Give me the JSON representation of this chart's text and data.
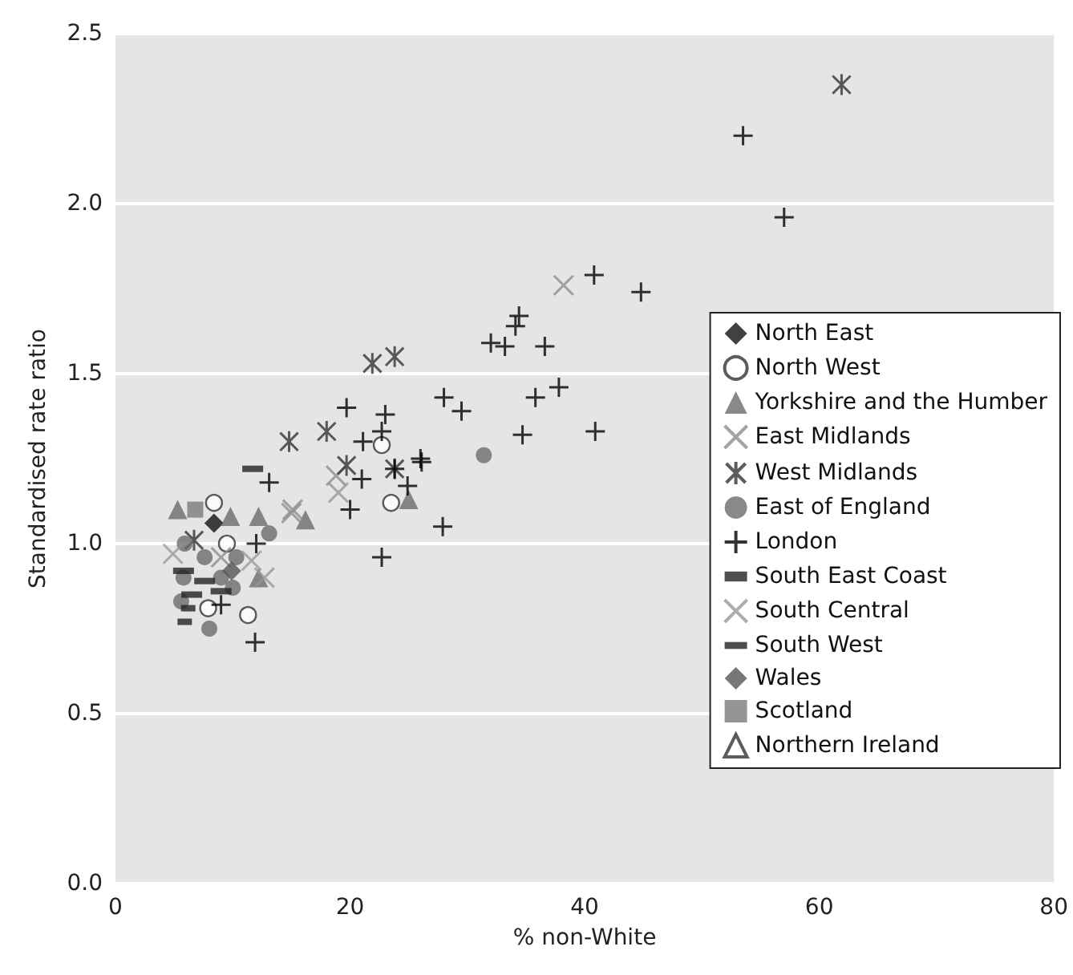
{
  "chart_data": {
    "type": "scatter",
    "xlabel": "% non-White",
    "ylabel": "Standardised rate ratio",
    "xlim": [
      0,
      80
    ],
    "xticks": [
      0,
      20,
      40,
      60,
      80
    ],
    "ylim": [
      0,
      2.5
    ],
    "yticks": [
      {
        "value": 0,
        "label": "0.0"
      },
      {
        "value": 0.5,
        "label": "0.5"
      },
      {
        "value": 1,
        "label": "1.0"
      },
      {
        "value": 1.5,
        "label": "1.5"
      },
      {
        "value": 2,
        "label": "2.0"
      },
      {
        "value": 2.5,
        "label": "2.5"
      }
    ],
    "grid": "y",
    "legend": "right",
    "series": [
      {
        "name": "North East",
        "color": "#111111",
        "marker": "diamond",
        "x": [
          8.4
        ],
        "values": [
          1.06
        ]
      },
      {
        "name": "North West",
        "color": "#ffffff",
        "marker": "circle",
        "x": [
          22.7,
          23.5,
          8.4,
          9.5,
          7.9,
          11.3
        ],
        "values": [
          1.29,
          1.12,
          1.12,
          1.0,
          0.81,
          0.79
        ]
      },
      {
        "name": "Yorkshire and the Humber",
        "color": "#6b6b6b",
        "marker": "triangle",
        "x": [
          25.0,
          16.2,
          5.3,
          9.8,
          12.2,
          12.2
        ],
        "values": [
          1.13,
          1.07,
          1.1,
          1.08,
          1.08,
          0.9
        ]
      },
      {
        "name": "East Midlands",
        "color": "#8c8c8c",
        "marker": "x",
        "x": [
          38.2,
          18.8,
          15.1,
          15.0,
          9.0
        ],
        "values": [
          1.76,
          1.2,
          1.1,
          1.09,
          0.96
        ]
      },
      {
        "name": "West Midlands",
        "color": "#333333",
        "marker": "cross",
        "x": [
          61.9,
          21.9,
          23.8,
          18.0,
          14.8,
          19.7,
          23.8,
          6.7
        ],
        "values": [
          2.35,
          1.53,
          1.55,
          1.33,
          1.3,
          1.23,
          1.22,
          1.01
        ]
      },
      {
        "name": "East of England",
        "color": "#6b6b6b",
        "marker": "circle",
        "x": [
          31.4,
          13.1,
          5.9,
          7.6,
          10.3,
          9.0,
          5.8,
          5.6,
          10.0,
          8.0
        ],
        "values": [
          1.26,
          1.03,
          1.0,
          0.96,
          0.96,
          0.9,
          0.9,
          0.83,
          0.87,
          0.75
        ]
      },
      {
        "name": "London",
        "color": "#000000",
        "marker": "cross",
        "x": [
          53.5,
          57.0,
          40.8,
          44.8,
          34.4,
          34.1,
          32.0,
          33.2,
          36.6,
          28.0,
          29.5,
          35.8,
          37.8,
          34.7,
          40.9,
          19.7,
          23.0,
          22.7,
          21.1,
          13.1,
          21.0,
          23.8,
          26.0,
          26.1,
          24.9,
          20.0,
          27.9,
          22.7,
          12.0,
          9.0,
          11.9
        ],
        "values": [
          2.2,
          1.96,
          1.79,
          1.74,
          1.67,
          1.64,
          1.59,
          1.58,
          1.58,
          1.43,
          1.39,
          1.43,
          1.46,
          1.32,
          1.33,
          1.4,
          1.38,
          1.33,
          1.3,
          1.18,
          1.19,
          1.22,
          1.25,
          1.24,
          1.17,
          1.1,
          1.05,
          0.96,
          1.0,
          0.82,
          0.71
        ]
      },
      {
        "name": "South East Coast",
        "color": "#222222",
        "marker": "square",
        "x": [
          6.2,
          5.9
        ],
        "values": [
          0.81,
          0.77
        ]
      },
      {
        "name": "South Central",
        "color": "#999999",
        "marker": "x",
        "x": [
          19.0,
          4.9,
          11.6,
          12.7
        ],
        "values": [
          1.15,
          0.97,
          0.95,
          0.9
        ]
      },
      {
        "name": "South West",
        "color": "#222222",
        "marker": "square",
        "x": [
          11.7,
          5.8,
          7.6,
          6.5,
          9.0
        ],
        "values": [
          1.22,
          0.92,
          0.89,
          0.85,
          0.86
        ]
      },
      {
        "name": "Wales",
        "color": "#555555",
        "marker": "diamond",
        "x": [
          9.9
        ],
        "values": [
          0.92
        ]
      },
      {
        "name": "Scotland",
        "color": "#7a7a7a",
        "marker": "square",
        "x": [
          6.8
        ],
        "values": [
          1.1
        ]
      },
      {
        "name": "Northern Ireland",
        "color": "#ffffff",
        "marker": "triangle"
      }
    ]
  }
}
